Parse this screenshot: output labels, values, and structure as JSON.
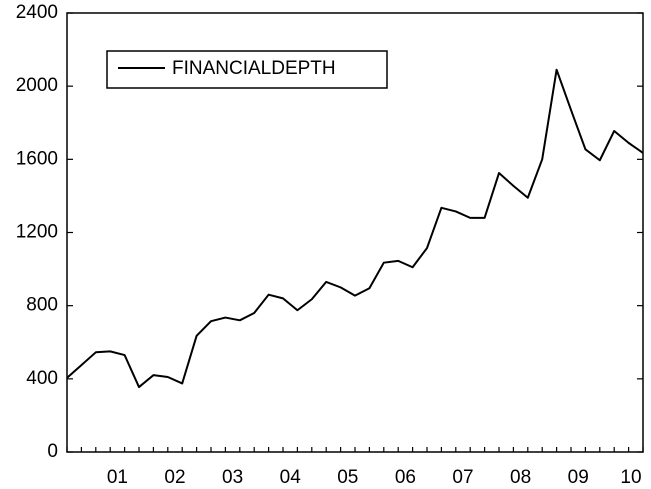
{
  "chart_data": {
    "type": "line",
    "categories": [
      null,
      null,
      null,
      "01",
      null,
      null,
      null,
      "02",
      null,
      null,
      null,
      "03",
      null,
      null,
      null,
      "04",
      null,
      null,
      null,
      "05",
      null,
      null,
      null,
      "06",
      null,
      null,
      null,
      "07",
      null,
      null,
      null,
      "08",
      null,
      null,
      null,
      "09",
      null,
      null,
      null,
      "10",
      null
    ],
    "series": [
      {
        "name": "FINANCIALDEPTH",
        "color": "#000000",
        "values": [
          405,
          475,
          545,
          550,
          530,
          355,
          420,
          410,
          375,
          635,
          715,
          735,
          720,
          760,
          860,
          840,
          775,
          835,
          930,
          900,
          855,
          895,
          1035,
          1045,
          1010,
          1115,
          1335,
          1315,
          1280,
          1280,
          1525,
          1455,
          1390,
          1600,
          2090,
          1870,
          1655,
          1595,
          1755,
          1690,
          1635
        ]
      }
    ],
    "ylim": [
      0,
      2400
    ],
    "yticks": [
      0,
      400,
      800,
      1200,
      1600,
      2000,
      2400
    ],
    "grid": false,
    "legend": "top-left"
  }
}
